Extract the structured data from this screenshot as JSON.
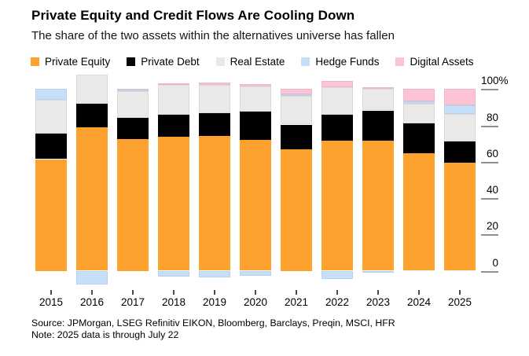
{
  "footer": {
    "source": "Source: JPMorgan, LSEG Refinitiv EIKON, Bloomberg, Barclays, Preqin, MSCI, HFR",
    "note": "Note: 2025 data is through July 22"
  },
  "chart_data": {
    "type": "bar",
    "stacked": true,
    "title": "Private Equity and Credit Flows Are Cooling Down",
    "subtitle": "The share of the two assets within the alternatives universe has fallen",
    "unit": "%",
    "categories": [
      "2015",
      "2016",
      "2017",
      "2018",
      "2019",
      "2020",
      "2021",
      "2022",
      "2023",
      "2024",
      "2025"
    ],
    "series": [
      {
        "key": "private-equity",
        "name": "Private Equity",
        "color": "#FCA12E",
        "values": [
          61.4,
          79.0,
          72.4,
          73.9,
          74.3,
          71.9,
          67.0,
          71.5,
          71.5,
          64.5,
          59.5
        ]
      },
      {
        "key": "private-debt",
        "name": "Private Debt",
        "color": "#000000",
        "values": [
          14.1,
          13.0,
          11.9,
          12.1,
          12.3,
          15.8,
          13.4,
          14.4,
          16.7,
          16.6,
          11.6
        ]
      },
      {
        "key": "real-estate",
        "name": "Real Estate",
        "color": "#EAE9E7",
        "values": [
          18.7,
          15.7,
          14.5,
          16.3,
          15.8,
          13.8,
          15.7,
          15.0,
          11.7,
          10.6,
          15.2
        ]
      },
      {
        "key": "hedge-funds",
        "name": "Hedge Funds",
        "color": "#C5DFFA",
        "values": [
          5.8,
          -7.7,
          0.8,
          -3.3,
          -3.5,
          -2.8,
          1.0,
          -4.4,
          -1.1,
          1.4,
          4.8
        ]
      },
      {
        "key": "digital-assets",
        "name": "Digital Assets",
        "color": "#FCC3D5",
        "values": [
          0.0,
          0.0,
          0.4,
          1.0,
          1.1,
          1.3,
          2.9,
          3.5,
          1.2,
          6.9,
          8.9
        ]
      }
    ],
    "yaxis": {
      "side": "right",
      "ticks": [
        100,
        80,
        60,
        40,
        20,
        0
      ],
      "tick_labels": [
        "100%",
        "80",
        "60",
        "40",
        "20",
        "0"
      ],
      "ylim_shown": [
        -8,
        108
      ],
      "grid": false
    },
    "legend_position": "top",
    "notes": "Stacked 100% composition; negative Hedge Funds values drawn below the zero baseline"
  }
}
